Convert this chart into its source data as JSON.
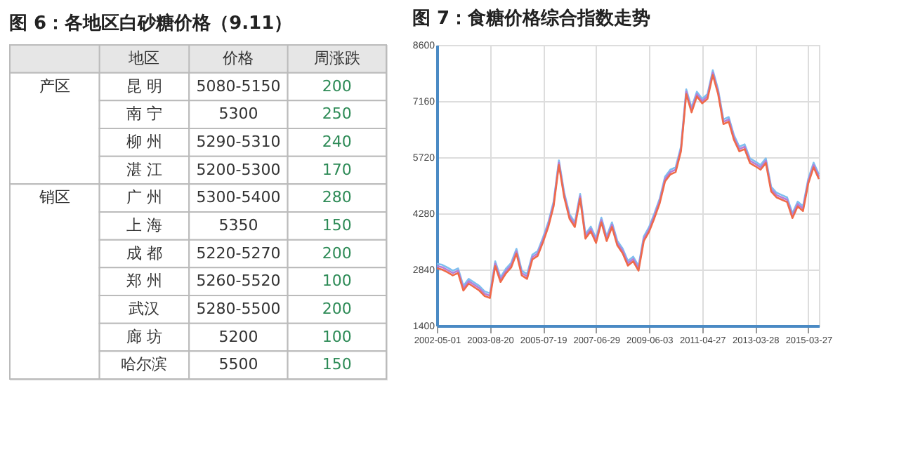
{
  "chart_data": [
    {
      "type": "other",
      "title": "图 6：各地区白砂糖价格（9.11）",
      "categories": [
        null,
        "地区",
        "价格",
        "周涨跌"
      ],
      "y_categories": [
        "昆 明",
        "南 宁",
        "柳 州",
        "湛 江",
        "广 州",
        "上 海",
        "成 都",
        "郑 州",
        "武汉",
        "廊 坊",
        "哈尔滨"
      ],
      "y2_categories": [
        "产区",
        null,
        null,
        null,
        "销区",
        null,
        null,
        null,
        null,
        null,
        null
      ],
      "cell_labels": [
        [
          "5080-5150",
          "200"
        ],
        [
          "5300",
          "250"
        ],
        [
          "5290-5310",
          "240"
        ],
        [
          "5200-5300",
          "170"
        ],
        [
          "5300-5400",
          "280"
        ],
        [
          "5350",
          "150"
        ],
        [
          "5220-5270",
          "200"
        ],
        [
          "5260-5520",
          "100"
        ],
        [
          "5280-5500",
          "200"
        ],
        [
          "5200",
          "100"
        ],
        [
          "5500",
          "150"
        ]
      ]
    },
    {
      "type": "line",
      "title": "图 7：食糖价格综合指数走势",
      "categories": [
        "2002-05-01",
        null,
        null,
        null,
        null,
        null,
        null,
        null,
        null,
        null,
        "2003-08-20",
        null,
        null,
        null,
        null,
        null,
        null,
        null,
        null,
        null,
        "2005-07-19",
        null,
        null,
        null,
        null,
        null,
        null,
        null,
        null,
        null,
        "2007-06-29",
        null,
        null,
        null,
        null,
        null,
        null,
        null,
        null,
        null,
        "2009-06-03",
        null,
        null,
        null,
        null,
        null,
        null,
        null,
        null,
        null,
        "2011-04-27",
        null,
        null,
        null,
        null,
        null,
        null,
        null,
        null,
        null,
        "2013-03-28",
        null,
        null,
        null,
        null,
        null,
        null,
        null,
        null,
        null,
        "2015-03-27",
        null,
        null
      ],
      "series": [
        {
          "color": "#7fbfef",
          "values": [
            2990,
            2960,
            2890,
            2810,
            2870,
            2420,
            2600,
            2510,
            2420,
            2280,
            2230,
            3050,
            2640,
            2860,
            3010,
            3370,
            2810,
            2720,
            3220,
            3310,
            3660,
            4050,
            4580,
            5640,
            4810,
            4260,
            4050,
            4780,
            3750,
            3940,
            3640,
            4170,
            3690,
            4050,
            3580,
            3380,
            3060,
            3170,
            2930,
            3690,
            3930,
            4280,
            4660,
            5220,
            5400,
            5460,
            5990,
            7460,
            6990,
            7400,
            7220,
            7340,
            7950,
            7460,
            6690,
            6750,
            6280,
            5990,
            6050,
            5690,
            5610,
            5520,
            5690,
            4960,
            4810,
            4750,
            4690,
            4280,
            4580,
            4460,
            5170,
            5580,
            5280
          ]
        },
        {
          "color": "#b57fd6",
          "values": [
            2930,
            2900,
            2830,
            2750,
            2810,
            2360,
            2540,
            2450,
            2360,
            2220,
            2170,
            2990,
            2580,
            2800,
            2950,
            3310,
            2750,
            2660,
            3160,
            3250,
            3600,
            3990,
            4520,
            5580,
            4750,
            4200,
            3990,
            4720,
            3690,
            3880,
            3580,
            4110,
            3630,
            3990,
            3520,
            3320,
            3000,
            3110,
            2870,
            3630,
            3870,
            4220,
            4600,
            5160,
            5340,
            5400,
            5930,
            7400,
            6930,
            7340,
            7160,
            7280,
            7890,
            7400,
            6630,
            6690,
            6220,
            5930,
            5990,
            5630,
            5550,
            5460,
            5630,
            4900,
            4750,
            4690,
            4630,
            4220,
            4520,
            4400,
            5110,
            5520,
            5220
          ]
        },
        {
          "color": "#ef6a4a",
          "values": [
            2870,
            2840,
            2770,
            2690,
            2750,
            2300,
            2480,
            2390,
            2300,
            2160,
            2110,
            2930,
            2520,
            2740,
            2890,
            3250,
            2690,
            2600,
            3100,
            3190,
            3540,
            3930,
            4460,
            5520,
            4690,
            4140,
            3930,
            4660,
            3630,
            3820,
            3520,
            4050,
            3570,
            3930,
            3460,
            3260,
            2940,
            3050,
            2810,
            3570,
            3810,
            4160,
            4540,
            5100,
            5280,
            5340,
            5870,
            7340,
            6870,
            7280,
            7100,
            7220,
            7830,
            7340,
            6570,
            6630,
            6160,
            5870,
            5930,
            5570,
            5490,
            5400,
            5570,
            4840,
            4690,
            4630,
            4570,
            4160,
            4460,
            4340,
            5050,
            5460,
            5160
          ]
        }
      ],
      "ylim": [
        1400,
        8600
      ],
      "yticks": [
        1400,
        2840,
        4280,
        5720,
        7160,
        8600
      ],
      "grid": true,
      "marker": "none",
      "line_style": "solid"
    }
  ]
}
